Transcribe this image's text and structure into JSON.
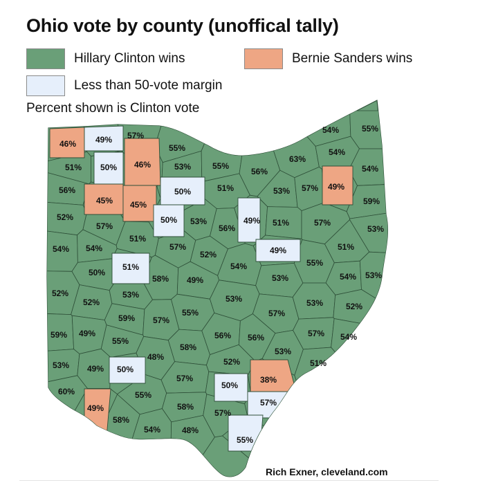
{
  "title": "Ohio vote by county (unoffical tally)",
  "legend": [
    {
      "label": "Hillary Clinton wins",
      "color": "#6a9f78"
    },
    {
      "label": "Bernie Sanders wins",
      "color": "#eea684"
    },
    {
      "label": "Less than 50-vote margin",
      "color": "#e6effb"
    }
  ],
  "note": "Percent shown is Clinton vote",
  "credit": "Rich Exner, cleveland.com",
  "colors": {
    "clinton": "#6a9f78",
    "sanders": "#eea684",
    "tie": "#e6effb",
    "border": "#2e4f38"
  },
  "counties": [
    {
      "pct": "46%",
      "winner": "sanders"
    },
    {
      "pct": "49%",
      "winner": "tie"
    },
    {
      "pct": "57%",
      "winner": "clinton"
    },
    {
      "pct": "55%",
      "winner": "clinton"
    },
    {
      "pct": "54%",
      "winner": "clinton"
    },
    {
      "pct": "55%",
      "winner": "clinton"
    },
    {
      "pct": "51%",
      "winner": "clinton"
    },
    {
      "pct": "50%",
      "winner": "tie"
    },
    {
      "pct": "46%",
      "winner": "sanders"
    },
    {
      "pct": "53%",
      "winner": "clinton"
    },
    {
      "pct": "55%",
      "winner": "clinton"
    },
    {
      "pct": "56%",
      "winner": "clinton"
    },
    {
      "pct": "63%",
      "winner": "clinton"
    },
    {
      "pct": "54%",
      "winner": "clinton"
    },
    {
      "pct": "54%",
      "winner": "clinton"
    },
    {
      "pct": "56%",
      "winner": "clinton"
    },
    {
      "pct": "45%",
      "winner": "sanders"
    },
    {
      "pct": "45%",
      "winner": "sanders"
    },
    {
      "pct": "50%",
      "winner": "tie"
    },
    {
      "pct": "51%",
      "winner": "clinton"
    },
    {
      "pct": "53%",
      "winner": "clinton"
    },
    {
      "pct": "57%",
      "winner": "clinton"
    },
    {
      "pct": "49%",
      "winner": "sanders"
    },
    {
      "pct": "59%",
      "winner": "clinton"
    },
    {
      "pct": "52%",
      "winner": "clinton"
    },
    {
      "pct": "57%",
      "winner": "clinton"
    },
    {
      "pct": "50%",
      "winner": "tie"
    },
    {
      "pct": "53%",
      "winner": "clinton"
    },
    {
      "pct": "56%",
      "winner": "clinton"
    },
    {
      "pct": "49%",
      "winner": "tie"
    },
    {
      "pct": "51%",
      "winner": "clinton"
    },
    {
      "pct": "57%",
      "winner": "clinton"
    },
    {
      "pct": "53%",
      "winner": "clinton"
    },
    {
      "pct": "54%",
      "winner": "clinton"
    },
    {
      "pct": "54%",
      "winner": "clinton"
    },
    {
      "pct": "51%",
      "winner": "clinton"
    },
    {
      "pct": "57%",
      "winner": "clinton"
    },
    {
      "pct": "52%",
      "winner": "clinton"
    },
    {
      "pct": "49%",
      "winner": "tie"
    },
    {
      "pct": "51%",
      "winner": "clinton"
    },
    {
      "pct": "52%",
      "winner": "clinton"
    },
    {
      "pct": "50%",
      "winner": "tie"
    },
    {
      "pct": "51%",
      "winner": "clinton"
    },
    {
      "pct": "58%",
      "winner": "clinton"
    },
    {
      "pct": "49%",
      "winner": "sanders"
    },
    {
      "pct": "54%",
      "winner": "clinton"
    },
    {
      "pct": "53%",
      "winner": "clinton"
    },
    {
      "pct": "55%",
      "winner": "clinton"
    },
    {
      "pct": "54%",
      "winner": "clinton"
    },
    {
      "pct": "53%",
      "winner": "clinton"
    },
    {
      "pct": "52%",
      "winner": "clinton"
    },
    {
      "pct": "53%",
      "winner": "clinton"
    },
    {
      "pct": "53%",
      "winner": "clinton"
    },
    {
      "pct": "53%",
      "winner": "clinton"
    },
    {
      "pct": "59%",
      "winner": "clinton"
    },
    {
      "pct": "57%",
      "winner": "clinton"
    },
    {
      "pct": "55%",
      "winner": "clinton"
    },
    {
      "pct": "57%",
      "winner": "clinton"
    },
    {
      "pct": "52%",
      "winner": "clinton"
    },
    {
      "pct": "59%",
      "winner": "clinton"
    },
    {
      "pct": "49%",
      "winner": "sanders"
    },
    {
      "pct": "55%",
      "winner": "clinton"
    },
    {
      "pct": "57%",
      "winner": "clinton"
    },
    {
      "pct": "54%",
      "winner": "clinton"
    },
    {
      "pct": "48%",
      "winner": "clinton"
    },
    {
      "pct": "58%",
      "winner": "clinton"
    },
    {
      "pct": "56%",
      "winner": "clinton"
    },
    {
      "pct": "56%",
      "winner": "clinton"
    },
    {
      "pct": "53%",
      "winner": "clinton"
    },
    {
      "pct": "53%",
      "winner": "clinton"
    },
    {
      "pct": "49%",
      "winner": "tie"
    },
    {
      "pct": "52%",
      "winner": "clinton"
    },
    {
      "pct": "38%",
      "winner": "sanders"
    },
    {
      "pct": "51%",
      "winner": "clinton"
    },
    {
      "pct": "60%",
      "winner": "clinton"
    },
    {
      "pct": "57%",
      "winner": "clinton"
    },
    {
      "pct": "50%",
      "winner": "tie"
    },
    {
      "pct": "49%",
      "winner": "sanders"
    },
    {
      "pct": "55%",
      "winner": "clinton"
    },
    {
      "pct": "50%",
      "winner": "tie"
    },
    {
      "pct": "57%",
      "winner": "clinton"
    },
    {
      "pct": "58%",
      "winner": "clinton"
    },
    {
      "pct": "58%",
      "winner": "clinton"
    },
    {
      "pct": "57%",
      "winner": "clinton"
    },
    {
      "pct": "54%",
      "winner": "clinton"
    },
    {
      "pct": "48%",
      "winner": "tie"
    },
    {
      "pct": "55%",
      "winner": "clinton"
    }
  ]
}
